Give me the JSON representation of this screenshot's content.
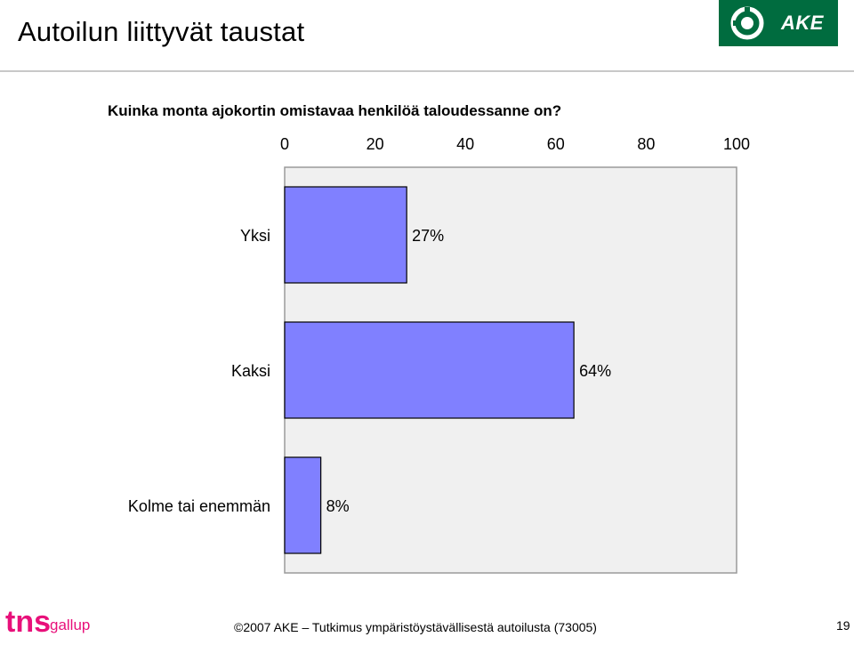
{
  "slide": {
    "title": "Autoilun liittyvät taustat",
    "question": "Kuinka monta ajokortin omistavaa henkilöä taloudessanne on?",
    "footer": "©2007 AKE – Tutkimus ympäristöystävällisestä autoilusta (73005)",
    "page_number": "19",
    "logo_ake_text": "AKE",
    "logo_tns_text": "tns",
    "logo_gallup_text": "gallup"
  },
  "colors": {
    "bar_fill": "#8080ff",
    "plot_bg": "#f0f0f0",
    "logo_green": "#006c3f",
    "tns_pink": "#e8107a"
  },
  "chart_data": {
    "type": "bar",
    "orientation": "horizontal",
    "categories": [
      "Yksi",
      "Kaksi",
      "Kolme tai enemmän"
    ],
    "values": [
      27,
      64,
      8
    ],
    "value_labels": [
      "27%",
      "64%",
      "8%"
    ],
    "xlim": [
      0,
      100
    ],
    "x_ticks": [
      "0",
      "20",
      "40",
      "60",
      "80",
      "100"
    ],
    "axis_position": "top",
    "grid": false,
    "legend": "none"
  }
}
